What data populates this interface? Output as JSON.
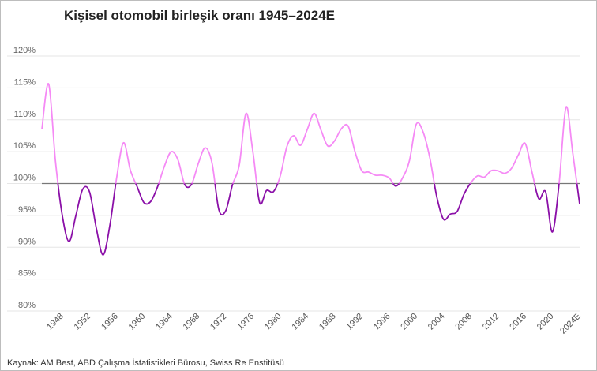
{
  "title": "Kişisel otomobil birleşik oranı 1945–2024E",
  "source": "Kaynak: AM Best, ABD Çalışma İstatistikleri Bürosu, Swiss Re Enstitüsü",
  "colors": {
    "above_100": "#f58af5",
    "below_100": "#8b10a8",
    "reference_line": "#777777",
    "grid": "#e6e6e6"
  },
  "chart_data": {
    "type": "line",
    "title": "Kişisel otomobil birleşik oranı 1945–2024E",
    "xlabel": "",
    "ylabel": "",
    "ylim": [
      80,
      120
    ],
    "xlim": [
      1945,
      2024
    ],
    "grid": "horizontal",
    "reference_line": 100,
    "y_ticks": [
      "80%",
      "85%",
      "90%",
      "95%",
      "100%",
      "105%",
      "110%",
      "115%",
      "120%"
    ],
    "x_ticks": [
      "1948",
      "1952",
      "1956",
      "1960",
      "1964",
      "1968",
      "1972",
      "1976",
      "1980",
      "1984",
      "1988",
      "1992",
      "1996",
      "2000",
      "2004",
      "2008",
      "2012",
      "2016",
      "2020",
      "2024E"
    ],
    "x_tick_years": [
      1948,
      1952,
      1956,
      1960,
      1964,
      1968,
      1972,
      1976,
      1980,
      1984,
      1988,
      1992,
      1996,
      2000,
      2004,
      2008,
      2012,
      2016,
      2020,
      2024
    ],
    "x": [
      1945,
      1946,
      1947,
      1948,
      1949,
      1950,
      1951,
      1952,
      1953,
      1954,
      1955,
      1956,
      1957,
      1958,
      1959,
      1960,
      1961,
      1962,
      1963,
      1964,
      1965,
      1966,
      1967,
      1968,
      1969,
      1970,
      1971,
      1972,
      1973,
      1974,
      1975,
      1976,
      1977,
      1978,
      1979,
      1980,
      1981,
      1982,
      1983,
      1984,
      1985,
      1986,
      1987,
      1988,
      1989,
      1990,
      1991,
      1992,
      1993,
      1994,
      1995,
      1996,
      1997,
      1998,
      1999,
      2000,
      2001,
      2002,
      2003,
      2004,
      2005,
      2006,
      2007,
      2008,
      2009,
      2010,
      2011,
      2012,
      2013,
      2014,
      2015,
      2016,
      2017,
      2018,
      2019,
      2020,
      2021,
      2022,
      2023,
      2024
    ],
    "series": [
      {
        "values": [
          108.5,
          115.6,
          103.5,
          95.0,
          90.9,
          95.0,
          99.1,
          98.7,
          93.0,
          88.8,
          93.5,
          101.0,
          106.4,
          102.1,
          99.5,
          97.0,
          97.2,
          99.5,
          102.7,
          105.0,
          103.7,
          99.8,
          99.9,
          103.2,
          105.6,
          103.2,
          95.9,
          95.7,
          99.8,
          102.9,
          111.0,
          105.0,
          97.0,
          98.9,
          98.7,
          101.1,
          105.8,
          107.5,
          106.0,
          108.5,
          111.0,
          108.4,
          105.9,
          106.7,
          108.6,
          109.0,
          105.0,
          102.0,
          101.8,
          101.3,
          101.3,
          100.9,
          99.6,
          100.9,
          103.6,
          109.3,
          108.1,
          104.0,
          98.0,
          94.4,
          95.2,
          95.6,
          98.3,
          100.1,
          101.2,
          101.0,
          102.0,
          102.0,
          101.6,
          102.4,
          104.5,
          106.3,
          101.8,
          97.6,
          98.7,
          92.4,
          100.2,
          112.0,
          104.7,
          96.8
        ]
      }
    ]
  }
}
